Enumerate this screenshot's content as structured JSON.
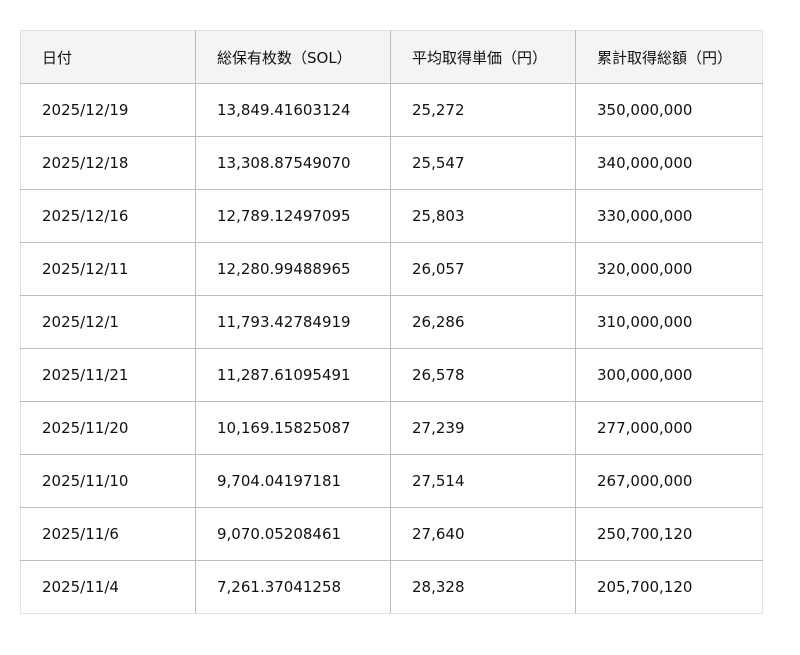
{
  "table": {
    "headers": [
      "日付",
      "総保有枚数（SOL）",
      "平均取得単価（円）",
      "累計取得総額（円）"
    ],
    "rows": [
      [
        "2025/12/19",
        "13,849.41603124",
        "25,272",
        "350,000,000"
      ],
      [
        "2025/12/18",
        "13,308.87549070",
        "25,547",
        "340,000,000"
      ],
      [
        "2025/12/16",
        "12,789.12497095",
        "25,803",
        "330,000,000"
      ],
      [
        "2025/12/11",
        "12,280.99488965",
        "26,057",
        "320,000,000"
      ],
      [
        "2025/12/1",
        "11,793.42784919",
        "26,286",
        "310,000,000"
      ],
      [
        "2025/11/21",
        "11,287.61095491",
        "26,578",
        "300,000,000"
      ],
      [
        "2025/11/20",
        "10,169.15825087",
        "27,239",
        "277,000,000"
      ],
      [
        "2025/11/10",
        "9,704.04197181",
        "27,514",
        "267,000,000"
      ],
      [
        "2025/11/6",
        "9,070.05208461",
        "27,640",
        "250,700,120"
      ],
      [
        "2025/11/4",
        "7,261.37041258",
        "28,328",
        "205,700,120"
      ]
    ]
  }
}
